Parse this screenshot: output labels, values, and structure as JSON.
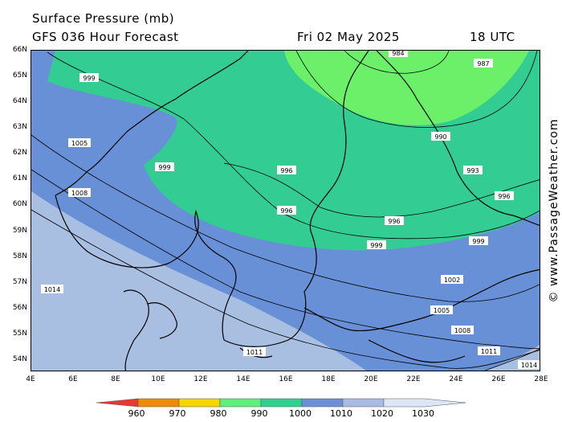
{
  "title": "Surface Pressure (mb)",
  "subtitle": "GFS 036 Hour Forecast",
  "forecast_date": "Fri 02 May 2025",
  "forecast_time": "18 UTC",
  "credit": "© www.PassageWeather.com",
  "latitude_ticks": [
    "66N",
    "65N",
    "64N",
    "63N",
    "62N",
    "61N",
    "60N",
    "59N",
    "58N",
    "57N",
    "56N",
    "55N",
    "54N"
  ],
  "longitude_ticks": [
    "4E",
    "6E",
    "8E",
    "10E",
    "12E",
    "14E",
    "16E",
    "18E",
    "20E",
    "22E",
    "24E",
    "26E",
    "28E"
  ],
  "isobar_labels": [
    "999",
    "1005",
    "999",
    "1008",
    "996",
    "996",
    "996",
    "999",
    "999",
    "1014",
    "1011",
    "984",
    "987",
    "990",
    "993",
    "996",
    "1002",
    "1005",
    "1008",
    "1011",
    "1014"
  ],
  "legend": {
    "values": [
      "960",
      "970",
      "980",
      "990",
      "1000",
      "1010",
      "1020",
      "1030"
    ],
    "colors": [
      "#e8392e",
      "#f08a00",
      "#f5d400",
      "#5ef07a",
      "#2fd090",
      "#6d8fd8",
      "#a8bce2",
      "#dde6f5"
    ]
  },
  "colors": {
    "band_980_990": "#6cf06a",
    "band_990_1000": "#33cc93",
    "band_1000_1010": "#6890d6",
    "band_1010_1020": "#a9bfe2",
    "isobar": "#000000",
    "coastline": "#000000"
  }
}
